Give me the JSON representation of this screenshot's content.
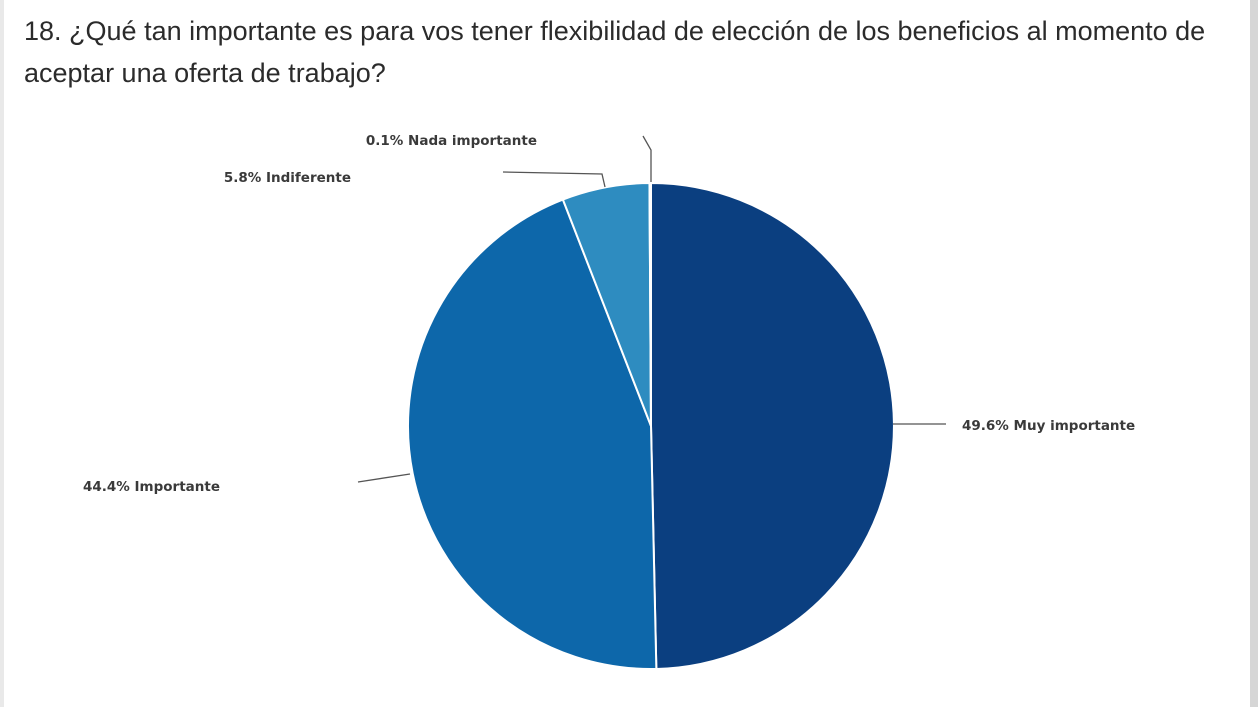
{
  "title": "18. ¿Qué tan importante es para vos tener flexibilidad de elección de los beneficios al momento de aceptar una oferta de trabajo?",
  "chart_data": {
    "type": "pie",
    "title": "18. ¿Qué tan importante es para vos tener flexibilidad de elección de los beneficios al momento de aceptar una oferta de trabajo?",
    "slices": [
      {
        "label": "Muy importante",
        "value": 49.6,
        "display": "49.6% Muy importante",
        "color": "#0b3f80"
      },
      {
        "label": "Importante",
        "value": 44.4,
        "display": "44.4% Importante",
        "color": "#0d67aa"
      },
      {
        "label": "Indiferente",
        "value": 5.8,
        "display": "5.8% Indiferente",
        "color": "#2e8cc0"
      },
      {
        "label": "Nada importante",
        "value": 0.1,
        "display": "0.1% Nada importante",
        "color": "#2b3a4a"
      }
    ],
    "direction": "clockwise",
    "start": "top",
    "legend": "none",
    "data_labels": "outside-with-leader-lines"
  }
}
